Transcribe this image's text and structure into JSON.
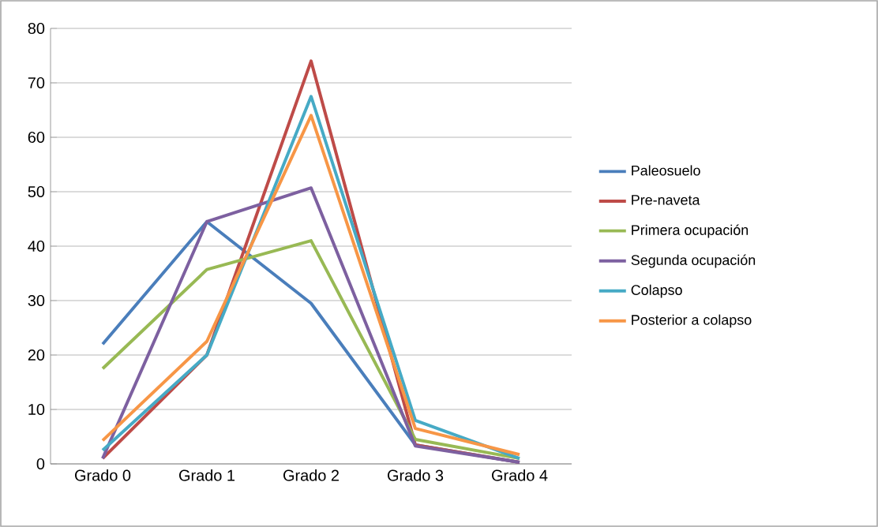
{
  "chart_data": {
    "type": "line",
    "categories": [
      "Grado 0",
      "Grado 1",
      "Grado 2",
      "Grado 3",
      "Grado 4"
    ],
    "series": [
      {
        "name": "Paleosuelo",
        "color": "#4a7ebb",
        "values": [
          22,
          44.5,
          29.5,
          3.5,
          0.3
        ]
      },
      {
        "name": "Pre-naveta",
        "color": "#be4b48",
        "values": [
          1,
          20,
          74,
          3.5,
          0.3
        ]
      },
      {
        "name": "Primera ocupación",
        "color": "#98b954",
        "values": [
          17.5,
          35.7,
          41,
          4.5,
          1
        ]
      },
      {
        "name": "Segunda ocupación",
        "color": "#7d60a0",
        "values": [
          1,
          44.5,
          50.7,
          3.3,
          0.3
        ]
      },
      {
        "name": "Colapso",
        "color": "#46aac5",
        "values": [
          2.5,
          20,
          67.5,
          8,
          1
        ]
      },
      {
        "name": "Posterior a colapso",
        "color": "#f79646",
        "values": [
          4.3,
          22.5,
          64,
          6.5,
          1.7
        ]
      }
    ],
    "ylim": [
      0,
      80
    ],
    "yticks": [
      0,
      10,
      20,
      30,
      40,
      50,
      60,
      70,
      80
    ],
    "grid": "y",
    "legend": "right",
    "marker": "none",
    "line_style": "solid"
  }
}
